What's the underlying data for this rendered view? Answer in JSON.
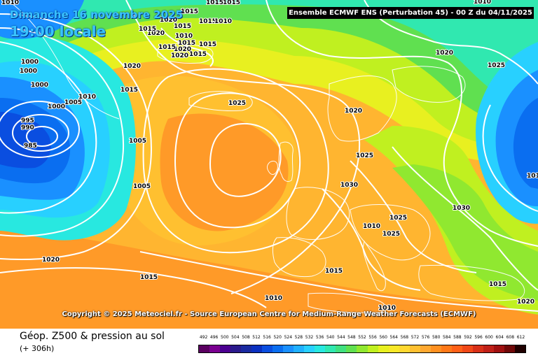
{
  "header": {
    "date": "Dimanche 16 novembre 2025",
    "time": "19:00 locale",
    "model": "Ensemble ECMWF ENS  (Perturbation 45)  -  00 Z du 04/11/2025"
  },
  "copyright": "Copyright © 2025 Meteociel.fr - Source European Centre for Medium-Range Weather Forecasts (ECMWF)",
  "footer": {
    "parameter": "Géop. Z500 & pression au sol",
    "lead_time": "(+ 306h)"
  },
  "scale": {
    "values": [
      "492",
      "496",
      "500",
      "504",
      "508",
      "512",
      "516",
      "520",
      "524",
      "528",
      "532",
      "536",
      "540",
      "544",
      "548",
      "552",
      "556",
      "560",
      "564",
      "568",
      "572",
      "576",
      "580",
      "584",
      "588",
      "592",
      "596",
      "600",
      "604",
      "608",
      "612"
    ],
    "colors": [
      "#5a0060",
      "#7a0090",
      "#4b0090",
      "#2a1a8c",
      "#1a2aa0",
      "#0a30c0",
      "#0a4ee0",
      "#0a6ef0",
      "#1a90ff",
      "#20b0ff",
      "#28d0ff",
      "#28e8e0",
      "#30e8b0",
      "#40e080",
      "#60e050",
      "#90e830",
      "#c0f020",
      "#e8f020",
      "#f8e828",
      "#ffd830",
      "#ffc030",
      "#ffa830",
      "#ff9020",
      "#ff7818",
      "#ff6018",
      "#f04818",
      "#d83018",
      "#c02018",
      "#a01010",
      "#700808",
      "#200000"
    ]
  },
  "pressure_labels": [
    "1010",
    "1015",
    "1015",
    "1015",
    "1020",
    "1020",
    "1015",
    "1015",
    "1015",
    "1010",
    "1010",
    "1015",
    "1015",
    "1020",
    "1020",
    "1015",
    "1020",
    "1015",
    "1000",
    "1000",
    "1000",
    "1020",
    "1010",
    "1015",
    "1005",
    "1000",
    "995",
    "990",
    "985",
    "1025",
    "1005",
    "1005",
    "1020",
    "1025",
    "1030",
    "1025",
    "1010",
    "1025",
    "1030",
    "1015",
    "1025",
    "1020",
    "1015",
    "1010",
    "1015",
    "1020",
    "1010",
    "1015",
    "1010"
  ],
  "lows": [
    "995",
    "990",
    "985"
  ]
}
